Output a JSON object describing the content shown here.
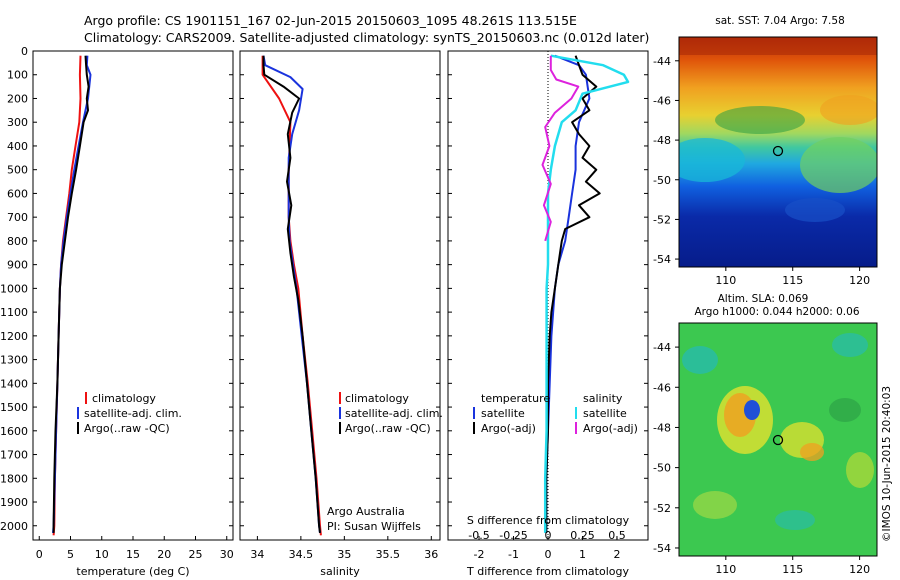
{
  "title": {
    "line1": "Argo profile: CS 1901151_167 02-Jun-2015 20150603_1095 48.261S 113.515E",
    "line2": "Climatology: CARS2009. Satellite-adjusted climatology: synTS_20150603.nc (0.012d later)"
  },
  "depth_axis": {
    "ticks": [
      "0",
      "100",
      "200",
      "300",
      "400",
      "500",
      "600",
      "700",
      "800",
      "900",
      "1000",
      "1100",
      "1200",
      "1300",
      "1400",
      "1500",
      "1600",
      "1700",
      "1800",
      "1900",
      "2000"
    ],
    "ylim": [
      0,
      2060
    ]
  },
  "colors": {
    "climatology": "#ee1111",
    "satellite": "#1a33dd",
    "argo": "#000000",
    "argo_s": "#dd22dd",
    "satellite_s": "#22ddee"
  },
  "panel_temp": {
    "xlabel": "temperature (deg C)",
    "xlim": [
      -1,
      31
    ],
    "xticks": [
      "0",
      "5",
      "10",
      "15",
      "20",
      "25",
      "30"
    ],
    "legend": [
      "climatology",
      "satellite-adj. clim.",
      "Argo(..raw -QC)"
    ]
  },
  "panel_sal": {
    "xlabel": "salinity",
    "xlim": [
      33.8,
      36.1
    ],
    "xticks": [
      "34",
      "34.5",
      "35",
      "35.5",
      "36"
    ],
    "legend": [
      "climatology",
      "satellite-adj. clim.",
      "Argo(..raw -QC)"
    ],
    "annot1": "Argo Australia",
    "annot2": "PI: Susan Wijffels"
  },
  "panel_diff": {
    "xlabel": "T difference from climatology",
    "xlabel2": "S difference from climatology",
    "xlim": [
      -2.9,
      2.9
    ],
    "xticks": [
      "-2",
      "-1",
      "0",
      "1",
      "2"
    ],
    "xticks2": [
      "-0.5",
      "-0.25",
      "0",
      "0.25",
      "0.5"
    ],
    "legend_temp_head": "temperature",
    "legend_sal_head": "salinity",
    "legend_temp": [
      "satellite",
      "Argo(-adj)"
    ],
    "legend_sal": [
      "satellite",
      "Argo(-adj)"
    ]
  },
  "map_sst": {
    "title": "sat. SST: 7.04 Argo: 7.58",
    "yticks": [
      "-44",
      "-46",
      "-48",
      "-50",
      "-52",
      "-54"
    ],
    "xticks": [
      "110",
      "115",
      "120"
    ]
  },
  "map_sla": {
    "title1": "Altim. SLA: 0.069",
    "title2": "Argo h1000: 0.044 h2000: 0.06",
    "yticks": [
      "-44",
      "-46",
      "-48",
      "-50",
      "-52",
      "-54"
    ],
    "xticks": [
      "110",
      "115",
      "120"
    ],
    "stamp": "©IMOS 10-Jun-2015 20:40:03"
  },
  "chart_data": [
    {
      "type": "line",
      "title": "temperature profile",
      "xlabel": "temperature (deg C)",
      "ylabel": "depth",
      "xlim": [
        -1,
        31
      ],
      "ylim": [
        0,
        2060
      ],
      "series": [
        {
          "name": "climatology",
          "points": [
            [
              6.6,
              20
            ],
            [
              6.5,
              100
            ],
            [
              6.6,
              200
            ],
            [
              6.4,
              300
            ],
            [
              5.8,
              400
            ],
            [
              5.2,
              500
            ],
            [
              4.8,
              600
            ],
            [
              4.3,
              700
            ],
            [
              3.8,
              800
            ],
            [
              3.5,
              900
            ],
            [
              3.3,
              1000
            ],
            [
              3.1,
              1200
            ],
            [
              2.9,
              1400
            ],
            [
              2.7,
              1600
            ],
            [
              2.5,
              1800
            ],
            [
              2.4,
              2000
            ],
            [
              2.3,
              2040
            ]
          ]
        },
        {
          "name": "satellite-adj. clim.",
          "points": [
            [
              7.7,
              20
            ],
            [
              7.6,
              60
            ],
            [
              8.2,
              100
            ],
            [
              7.8,
              200
            ],
            [
              7.0,
              300
            ],
            [
              6.3,
              400
            ],
            [
              5.6,
              500
            ],
            [
              5.0,
              600
            ],
            [
              4.4,
              700
            ],
            [
              3.9,
              800
            ],
            [
              3.5,
              900
            ],
            [
              3.3,
              1000
            ],
            [
              3.1,
              1200
            ],
            [
              2.9,
              1400
            ],
            [
              2.7,
              1600
            ],
            [
              2.5,
              1800
            ],
            [
              2.3,
              2000
            ],
            [
              2.2,
              2030
            ]
          ]
        },
        {
          "name": "Argo(..raw -QC)",
          "points": [
            [
              7.4,
              20
            ],
            [
              7.5,
              60
            ],
            [
              7.6,
              100
            ],
            [
              7.9,
              150
            ],
            [
              7.6,
              200
            ],
            [
              7.8,
              250
            ],
            [
              7.1,
              300
            ],
            [
              6.5,
              400
            ],
            [
              5.9,
              500
            ],
            [
              5.2,
              600
            ],
            [
              4.6,
              700
            ],
            [
              4.1,
              800
            ],
            [
              3.6,
              900
            ],
            [
              3.3,
              1000
            ],
            [
              3.1,
              1200
            ],
            [
              2.9,
              1400
            ],
            [
              2.6,
              1600
            ],
            [
              2.4,
              1800
            ],
            [
              2.3,
              2000
            ],
            [
              2.3,
              2030
            ]
          ]
        }
      ]
    },
    {
      "type": "line",
      "title": "salinity profile",
      "xlabel": "salinity",
      "ylabel": "depth",
      "xlim": [
        33.8,
        36.1
      ],
      "ylim": [
        0,
        2060
      ],
      "series": [
        {
          "name": "climatology",
          "points": [
            [
              34.06,
              20
            ],
            [
              34.06,
              100
            ],
            [
              34.25,
              200
            ],
            [
              34.38,
              300
            ],
            [
              34.37,
              400
            ],
            [
              34.36,
              500
            ],
            [
              34.36,
              600
            ],
            [
              34.36,
              700
            ],
            [
              34.38,
              800
            ],
            [
              34.42,
              900
            ],
            [
              34.47,
              1000
            ],
            [
              34.52,
              1200
            ],
            [
              34.58,
              1400
            ],
            [
              34.63,
              1600
            ],
            [
              34.68,
              1800
            ],
            [
              34.72,
              2000
            ],
            [
              34.73,
              2040
            ]
          ]
        },
        {
          "name": "satellite-adj. clim.",
          "points": [
            [
              34.07,
              20
            ],
            [
              34.09,
              60
            ],
            [
              34.38,
              110
            ],
            [
              34.52,
              160
            ],
            [
              34.48,
              250
            ],
            [
              34.4,
              350
            ],
            [
              34.36,
              450
            ],
            [
              34.36,
              600
            ],
            [
              34.36,
              700
            ],
            [
              34.37,
              800
            ],
            [
              34.41,
              900
            ],
            [
              34.45,
              1000
            ],
            [
              34.51,
              1200
            ],
            [
              34.57,
              1400
            ],
            [
              34.62,
              1600
            ],
            [
              34.67,
              1800
            ],
            [
              34.71,
              2000
            ],
            [
              34.72,
              2030
            ]
          ]
        },
        {
          "name": "Argo(..raw -QC)",
          "points": [
            [
              34.07,
              20
            ],
            [
              34.07,
              60
            ],
            [
              34.08,
              100
            ],
            [
              34.3,
              150
            ],
            [
              34.48,
              200
            ],
            [
              34.4,
              260
            ],
            [
              34.35,
              350
            ],
            [
              34.38,
              450
            ],
            [
              34.34,
              550
            ],
            [
              34.39,
              650
            ],
            [
              34.35,
              750
            ],
            [
              34.38,
              850
            ],
            [
              34.42,
              950
            ],
            [
              34.47,
              1050
            ],
            [
              34.52,
              1200
            ],
            [
              34.57,
              1400
            ],
            [
              34.62,
              1600
            ],
            [
              34.67,
              1800
            ],
            [
              34.71,
              2000
            ],
            [
              34.72,
              2030
            ]
          ]
        }
      ]
    },
    {
      "type": "line",
      "title": "difference from climatology",
      "xlabel": "T difference from climatology",
      "ylabel": "depth",
      "xlim_T": [
        -2.9,
        2.9
      ],
      "xlim_S": [
        -0.725,
        0.725
      ],
      "ylim": [
        0,
        2060
      ],
      "series": [
        {
          "name": "temperature satellite",
          "points": [
            [
              0.2,
              20
            ],
            [
              0.9,
              60
            ],
            [
              1.1,
              100
            ],
            [
              1.2,
              200
            ],
            [
              0.9,
              300
            ],
            [
              0.8,
              400
            ],
            [
              0.8,
              500
            ],
            [
              0.7,
              600
            ],
            [
              0.6,
              700
            ],
            [
              0.5,
              800
            ],
            [
              0.3,
              900
            ],
            [
              0.2,
              1000
            ],
            [
              0.1,
              1200
            ],
            [
              0.05,
              1400
            ],
            [
              0.0,
              1600
            ],
            [
              -0.05,
              1800
            ],
            [
              -0.05,
              2000
            ],
            [
              -0.05,
              2030
            ]
          ]
        },
        {
          "name": "temperature Argo(-adj)",
          "points": [
            [
              0.8,
              20
            ],
            [
              0.9,
              60
            ],
            [
              1.0,
              100
            ],
            [
              1.4,
              150
            ],
            [
              1.0,
              200
            ],
            [
              1.2,
              250
            ],
            [
              0.7,
              300
            ],
            [
              0.9,
              350
            ],
            [
              1.2,
              400
            ],
            [
              1.0,
              450
            ],
            [
              1.4,
              500
            ],
            [
              1.1,
              550
            ],
            [
              1.5,
              600
            ],
            [
              0.9,
              650
            ],
            [
              1.2,
              700
            ],
            [
              0.5,
              750
            ],
            [
              0.4,
              800
            ],
            [
              0.3,
              900
            ],
            [
              0.2,
              1000
            ],
            [
              0.1,
              1100
            ],
            [
              0.05,
              1200
            ],
            [
              0.0,
              1400
            ],
            [
              0.0,
              1600
            ],
            [
              -0.05,
              1800
            ],
            [
              -0.05,
              2000
            ],
            [
              -0.05,
              2030
            ]
          ]
        },
        {
          "name": "salinity satellite",
          "points": [
            [
              0.02,
              20
            ],
            [
              0.4,
              60
            ],
            [
              0.55,
              100
            ],
            [
              0.58,
              130
            ],
            [
              0.25,
              180
            ],
            [
              0.2,
              250
            ],
            [
              0.1,
              300
            ],
            [
              0.05,
              400
            ],
            [
              0.02,
              500
            ],
            [
              0.0,
              600
            ],
            [
              0.0,
              700
            ],
            [
              0.0,
              800
            ],
            [
              0.0,
              900
            ],
            [
              -0.01,
              1000
            ],
            [
              -0.01,
              1200
            ],
            [
              -0.01,
              1400
            ],
            [
              -0.01,
              1600
            ],
            [
              -0.02,
              1800
            ],
            [
              -0.02,
              2000
            ],
            [
              -0.02,
              2030
            ]
          ]
        },
        {
          "name": "salinity Argo(-adj)",
          "points": [
            [
              0.02,
              20
            ],
            [
              0.02,
              80
            ],
            [
              0.06,
              120
            ],
            [
              0.22,
              150
            ],
            [
              0.17,
              200
            ],
            [
              0.05,
              260
            ],
            [
              -0.02,
              320
            ],
            [
              0.01,
              400
            ],
            [
              -0.04,
              480
            ],
            [
              0.02,
              560
            ],
            [
              -0.03,
              650
            ],
            [
              0.02,
              720
            ],
            [
              -0.02,
              800
            ]
          ]
        }
      ]
    },
    {
      "type": "heatmap",
      "title": "sat. SST: 7.04 Argo: 7.58",
      "x_ticks": [
        110,
        115,
        120
      ],
      "y_ticks": [
        -44,
        -46,
        -48,
        -50,
        -52,
        -54
      ],
      "argo_position": {
        "lon": 113.515,
        "lat": -48.261
      },
      "sst_sat": 7.04,
      "sst_argo": 7.58
    },
    {
      "type": "heatmap",
      "title": "Altim. SLA: 0.069 / Argo h1000: 0.044 h2000: 0.06",
      "x_ticks": [
        110,
        115,
        120
      ],
      "y_ticks": [
        -44,
        -46,
        -48,
        -50,
        -52,
        -54
      ],
      "argo_position": {
        "lon": 113.515,
        "lat": -48.261
      },
      "sla": 0.069,
      "h1000": 0.044,
      "h2000": 0.06
    }
  ]
}
